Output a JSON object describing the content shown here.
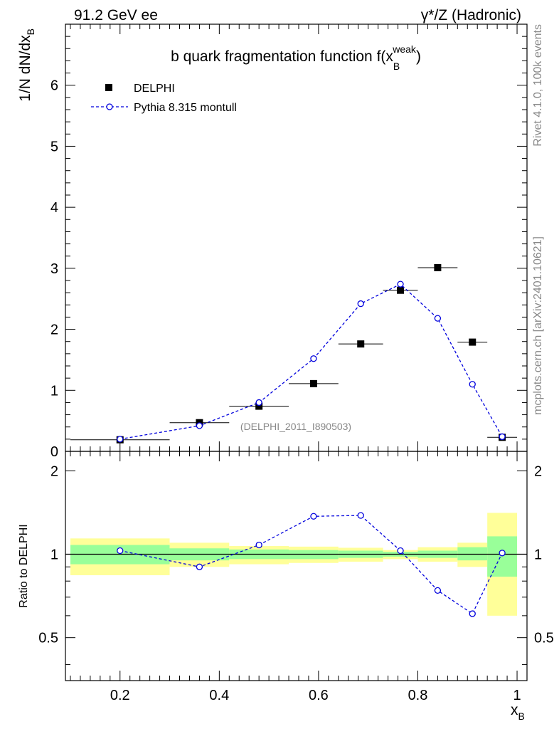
{
  "header": {
    "left": "91.2 GeV ee",
    "right": "γ*/Z (Hadronic)"
  },
  "side_labels": {
    "rivet": "Rivet 4.1.0,  100k events",
    "mcplots": "mcplots.cern.ch [arXiv:2401.10621]"
  },
  "chart_data": [
    {
      "type": "scatter",
      "panel": "main",
      "title": "b quark fragmentation function f(x_B^weak)",
      "title_parts": {
        "base": "b quark fragmentation function f(x",
        "sub": "B",
        "sup": "weak",
        "close": ")"
      },
      "ylabel": "1/N  dN/dx_B",
      "ylabel_parts": {
        "base": "1/N  dN/dx",
        "sub": "B"
      },
      "xlim": [
        0.09,
        1.02
      ],
      "ylim": [
        0,
        7
      ],
      "yticks": [
        0,
        1,
        2,
        3,
        4,
        5,
        6
      ],
      "ytick_labels": [
        "0",
        "1",
        "2",
        "3",
        "4",
        "5",
        "6"
      ],
      "watermark": "(DELPHI_2011_I890503)",
      "legend_position": "top-left",
      "series": [
        {
          "name": "DELPHI",
          "style": "markers",
          "marker": "square",
          "color": "#000000",
          "x": [
            0.2,
            0.36,
            0.48,
            0.59,
            0.685,
            0.765,
            0.84,
            0.91,
            0.97
          ],
          "y": [
            0.19,
            0.47,
            0.74,
            1.11,
            1.76,
            2.64,
            3.01,
            1.79,
            0.23
          ],
          "xerr": [
            [
              0.1,
              0.3
            ],
            [
              0.3,
              0.42
            ],
            [
              0.42,
              0.54
            ],
            [
              0.54,
              0.64
            ],
            [
              0.64,
              0.73
            ],
            [
              0.73,
              0.8
            ],
            [
              0.8,
              0.88
            ],
            [
              0.88,
              0.94
            ],
            [
              0.94,
              1.0
            ]
          ]
        },
        {
          "name": "Pythia 8.315 montull",
          "style": "dashed-line-open-circles",
          "color": "#0000dd",
          "x": [
            0.2,
            0.36,
            0.48,
            0.59,
            0.685,
            0.765,
            0.84,
            0.91,
            0.97
          ],
          "y": [
            0.2,
            0.42,
            0.8,
            1.52,
            2.42,
            2.74,
            2.18,
            1.1,
            0.24
          ]
        }
      ]
    },
    {
      "type": "scatter",
      "panel": "ratio",
      "ylabel": "Ratio to DELPHI",
      "xlabel": "x_B",
      "xlabel_parts": {
        "base": "x",
        "sub": "B"
      },
      "xlim": [
        0.09,
        1.02
      ],
      "ylim": [
        0.35,
        2.35
      ],
      "xticks": [
        0.2,
        0.4,
        0.6,
        0.8,
        1.0
      ],
      "xtick_labels": [
        "0.2",
        "0.4",
        "0.6",
        "0.8",
        "1"
      ],
      "yticks": [
        0.5,
        1,
        2
      ],
      "ytick_labels": [
        "0.5",
        "1",
        "2"
      ],
      "bands": {
        "bins": [
          [
            0.1,
            0.3
          ],
          [
            0.3,
            0.42
          ],
          [
            0.42,
            0.54
          ],
          [
            0.54,
            0.64
          ],
          [
            0.64,
            0.73
          ],
          [
            0.73,
            0.8
          ],
          [
            0.8,
            0.88
          ],
          [
            0.88,
            0.94
          ],
          [
            0.94,
            1.0
          ]
        ],
        "stat": [
          [
            0.92,
            1.08
          ],
          [
            0.95,
            1.05
          ],
          [
            0.96,
            1.04
          ],
          [
            0.96,
            1.035
          ],
          [
            0.97,
            1.03
          ],
          [
            0.98,
            1.02
          ],
          [
            0.97,
            1.03
          ],
          [
            0.95,
            1.06
          ],
          [
            0.83,
            1.16
          ]
        ],
        "total": [
          [
            0.84,
            1.14
          ],
          [
            0.9,
            1.1
          ],
          [
            0.92,
            1.07
          ],
          [
            0.93,
            1.065
          ],
          [
            0.94,
            1.055
          ],
          [
            0.96,
            1.035
          ],
          [
            0.94,
            1.06
          ],
          [
            0.9,
            1.1
          ],
          [
            0.6,
            1.41
          ]
        ],
        "stat_color": "#99ff99",
        "total_color": "#ffff99"
      },
      "series": [
        {
          "name": "Pythia 8.315 montull",
          "style": "dashed-line-open-circles",
          "color": "#0000dd",
          "x": [
            0.2,
            0.36,
            0.48,
            0.59,
            0.685,
            0.765,
            0.84,
            0.91,
            0.97
          ],
          "y": [
            1.03,
            0.9,
            1.08,
            1.37,
            1.38,
            1.03,
            0.74,
            0.61,
            1.01
          ]
        }
      ]
    }
  ]
}
